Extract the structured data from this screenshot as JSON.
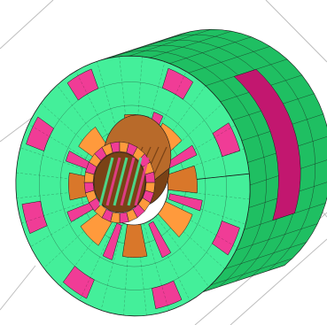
{
  "colors": {
    "background": "#ffffff",
    "guide_line": "#bdbdbd",
    "face_green": "#44ef9a",
    "face_green_dark": "#2fd982",
    "side_green": "#1fbf62",
    "side_green_dark": "#14a14f",
    "magenta": "#f03c96",
    "magenta_dark": "#c2176f",
    "orange": "#ff9a3c",
    "orange_dark": "#d9772a",
    "brown": "#b86a2a",
    "brown_dark": "#7a4216",
    "mesh_line": "#1b1b1b"
  },
  "components": {
    "outer_magenta_blocks": 8,
    "inner_magenta_blocks": 7,
    "orange_blocks": 8,
    "core_ring_segments": 24
  }
}
